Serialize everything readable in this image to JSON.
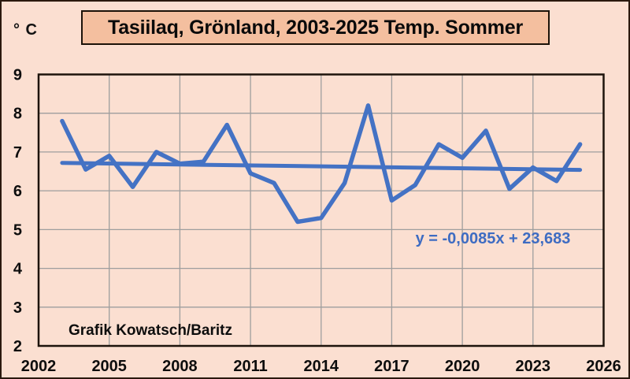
{
  "title": "Tasiilaq, Grönland, 2003-2025 Temp. Sommer",
  "y_axis_unit": "° C",
  "attribution": "Grafik Kowatsch/Baritz",
  "colors": {
    "background": "#fbdfd1",
    "title_box_fill": "#f4bf9f",
    "line_blue": "#4472c4",
    "equation_blue": "#3e6cc2",
    "gridline": "#9e9e9e",
    "axis_border": "#1d130b",
    "outer_border": "#2a190e",
    "text": "#0d0d0d"
  },
  "chart_data": {
    "type": "line",
    "title": "Tasiilaq, Grönland, 2003-2025 Temp. Sommer",
    "xlabel": "",
    "ylabel": "° C",
    "x": [
      2003,
      2004,
      2005,
      2006,
      2007,
      2008,
      2009,
      2010,
      2011,
      2012,
      2013,
      2014,
      2015,
      2016,
      2017,
      2018,
      2019,
      2020,
      2021,
      2022,
      2023,
      2024,
      2025
    ],
    "series": [
      {
        "name": "Temp. Sommer",
        "values": [
          7.8,
          6.55,
          6.9,
          6.1,
          7.0,
          6.7,
          6.75,
          7.7,
          6.45,
          6.2,
          5.2,
          5.3,
          6.2,
          8.2,
          5.75,
          6.15,
          7.2,
          6.85,
          7.55,
          6.05,
          6.6,
          6.25,
          7.2
        ]
      }
    ],
    "trendline": {
      "equation": "y = -0,0085x + 23,683",
      "x": [
        2003,
        2025
      ],
      "values": [
        6.72,
        6.54
      ]
    },
    "xlim": [
      2002,
      2026
    ],
    "ylim": [
      2,
      9
    ],
    "x_ticks": [
      2002,
      2005,
      2008,
      2011,
      2014,
      2017,
      2020,
      2023,
      2026
    ],
    "y_ticks": [
      2,
      3,
      4,
      5,
      6,
      7,
      8,
      9
    ],
    "grid": true,
    "legend": false
  }
}
